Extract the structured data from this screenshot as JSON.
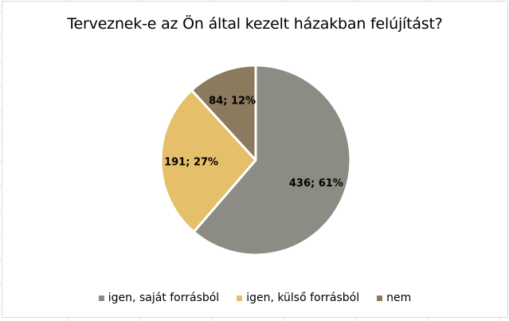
{
  "chart_data": {
    "type": "pie",
    "title": "Terveznek-e az Ön által kezelt házakban felújítást?",
    "start_angle": "top",
    "direction": "clockwise",
    "slices": [
      {
        "name": "igen, saját forrásból",
        "value": 436,
        "percent": 61,
        "label": "436; 61%",
        "color": "#8C8C84"
      },
      {
        "name": "igen, külső forrásból",
        "value": 191,
        "percent": 27,
        "label": "191; 27%",
        "color": "#E5BF69"
      },
      {
        "name": "nem",
        "value": 84,
        "percent": 12,
        "label": "84; 12%",
        "color": "#8B7A5E"
      }
    ],
    "legend_placement": "bottom"
  }
}
